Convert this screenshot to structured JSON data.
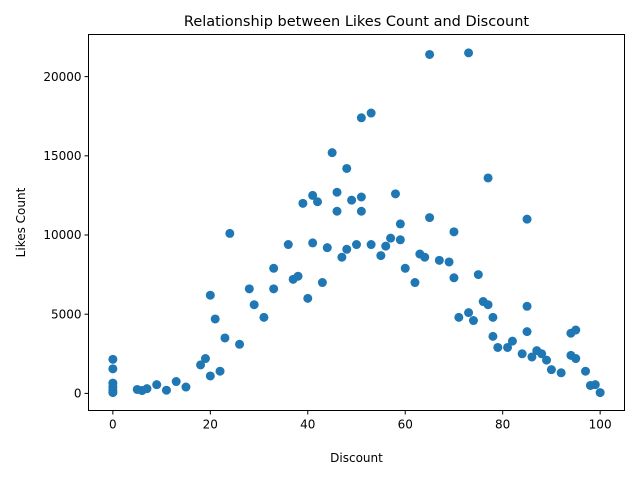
{
  "chart_data": {
    "type": "scatter",
    "title": "Relationship between Likes Count and Discount",
    "xlabel": "Discount",
    "ylabel": "Likes Count",
    "xlim": [
      -5,
      105
    ],
    "ylim": [
      -1080,
      22660
    ],
    "xticks": [
      0,
      20,
      40,
      60,
      80,
      100
    ],
    "yticks": [
      0,
      5000,
      10000,
      15000,
      20000
    ],
    "grid": false,
    "marker_color": "#1f77b4",
    "points": [
      {
        "x": 0,
        "y": 2150
      },
      {
        "x": 0,
        "y": 1550
      },
      {
        "x": 0,
        "y": 650
      },
      {
        "x": 0,
        "y": 400
      },
      {
        "x": 0,
        "y": 200
      },
      {
        "x": 0,
        "y": 50
      },
      {
        "x": 5,
        "y": 250
      },
      {
        "x": 6,
        "y": 180
      },
      {
        "x": 7,
        "y": 300
      },
      {
        "x": 9,
        "y": 550
      },
      {
        "x": 11,
        "y": 200
      },
      {
        "x": 13,
        "y": 750
      },
      {
        "x": 15,
        "y": 400
      },
      {
        "x": 18,
        "y": 1800
      },
      {
        "x": 19,
        "y": 2200
      },
      {
        "x": 20,
        "y": 6200
      },
      {
        "x": 20,
        "y": 1100
      },
      {
        "x": 21,
        "y": 4700
      },
      {
        "x": 22,
        "y": 1400
      },
      {
        "x": 23,
        "y": 3500
      },
      {
        "x": 24,
        "y": 10100
      },
      {
        "x": 26,
        "y": 3100
      },
      {
        "x": 28,
        "y": 6600
      },
      {
        "x": 29,
        "y": 5600
      },
      {
        "x": 31,
        "y": 4800
      },
      {
        "x": 33,
        "y": 7900
      },
      {
        "x": 33,
        "y": 6600
      },
      {
        "x": 36,
        "y": 9400
      },
      {
        "x": 37,
        "y": 7200
      },
      {
        "x": 38,
        "y": 7400
      },
      {
        "x": 39,
        "y": 12000
      },
      {
        "x": 40,
        "y": 6000
      },
      {
        "x": 41,
        "y": 9500
      },
      {
        "x": 41,
        "y": 12500
      },
      {
        "x": 42,
        "y": 12100
      },
      {
        "x": 43,
        "y": 7000
      },
      {
        "x": 44,
        "y": 9200
      },
      {
        "x": 45,
        "y": 15200
      },
      {
        "x": 46,
        "y": 12700
      },
      {
        "x": 46,
        "y": 11500
      },
      {
        "x": 47,
        "y": 8600
      },
      {
        "x": 48,
        "y": 14200
      },
      {
        "x": 48,
        "y": 9100
      },
      {
        "x": 49,
        "y": 12200
      },
      {
        "x": 50,
        "y": 9400
      },
      {
        "x": 51,
        "y": 17400
      },
      {
        "x": 51,
        "y": 12400
      },
      {
        "x": 51,
        "y": 11500
      },
      {
        "x": 53,
        "y": 17700
      },
      {
        "x": 53,
        "y": 9400
      },
      {
        "x": 55,
        "y": 8700
      },
      {
        "x": 56,
        "y": 9300
      },
      {
        "x": 57,
        "y": 9800
      },
      {
        "x": 58,
        "y": 12600
      },
      {
        "x": 59,
        "y": 10700
      },
      {
        "x": 59,
        "y": 9700
      },
      {
        "x": 60,
        "y": 7900
      },
      {
        "x": 62,
        "y": 7000
      },
      {
        "x": 63,
        "y": 8800
      },
      {
        "x": 64,
        "y": 8600
      },
      {
        "x": 65,
        "y": 21400
      },
      {
        "x": 65,
        "y": 11100
      },
      {
        "x": 67,
        "y": 8400
      },
      {
        "x": 69,
        "y": 8300
      },
      {
        "x": 70,
        "y": 10200
      },
      {
        "x": 70,
        "y": 7300
      },
      {
        "x": 71,
        "y": 4800
      },
      {
        "x": 73,
        "y": 21500
      },
      {
        "x": 73,
        "y": 5100
      },
      {
        "x": 74,
        "y": 4600
      },
      {
        "x": 75,
        "y": 7500
      },
      {
        "x": 76,
        "y": 5800
      },
      {
        "x": 77,
        "y": 13600
      },
      {
        "x": 77,
        "y": 5600
      },
      {
        "x": 78,
        "y": 4800
      },
      {
        "x": 78,
        "y": 3600
      },
      {
        "x": 79,
        "y": 2900
      },
      {
        "x": 81,
        "y": 2900
      },
      {
        "x": 82,
        "y": 3300
      },
      {
        "x": 84,
        "y": 2500
      },
      {
        "x": 85,
        "y": 11000
      },
      {
        "x": 85,
        "y": 5500
      },
      {
        "x": 85,
        "y": 3900
      },
      {
        "x": 86,
        "y": 2300
      },
      {
        "x": 87,
        "y": 2700
      },
      {
        "x": 88,
        "y": 2500
      },
      {
        "x": 89,
        "y": 2100
      },
      {
        "x": 90,
        "y": 1500
      },
      {
        "x": 92,
        "y": 1300
      },
      {
        "x": 94,
        "y": 3800
      },
      {
        "x": 94,
        "y": 2400
      },
      {
        "x": 95,
        "y": 4000
      },
      {
        "x": 95,
        "y": 2200
      },
      {
        "x": 97,
        "y": 1400
      },
      {
        "x": 98,
        "y": 500
      },
      {
        "x": 99,
        "y": 550
      },
      {
        "x": 100,
        "y": 50
      }
    ]
  }
}
